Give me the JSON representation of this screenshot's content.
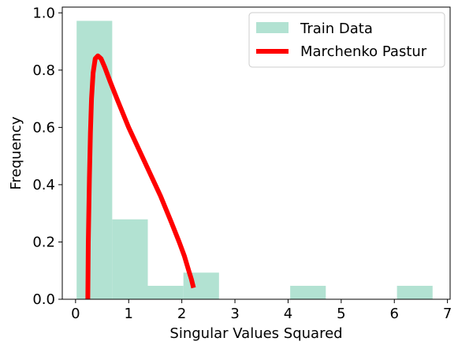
{
  "chart_data": {
    "type": "bar",
    "xlabel": "Singular Values Squared",
    "ylabel": "Frequency",
    "xlim": [
      -0.25,
      7.05
    ],
    "ylim": [
      0.0,
      1.02
    ],
    "xticks": [
      0,
      1,
      2,
      3,
      4,
      5,
      6,
      7
    ],
    "yticks": [
      0.0,
      0.2,
      0.4,
      0.6,
      0.8,
      1.0
    ],
    "xtick_labels": [
      "0",
      "1",
      "2",
      "3",
      "4",
      "5",
      "6",
      "7"
    ],
    "ytick_labels": [
      "0.0",
      "0.2",
      "0.4",
      "0.6",
      "0.8",
      "1.0"
    ],
    "grid": false,
    "legend_position": "top-right",
    "series": [
      {
        "name": "Train Data",
        "kind": "histogram",
        "color": "#b2e2d2",
        "bins": [
          {
            "x0": 0.02,
            "x1": 0.69,
            "value": 0.972
          },
          {
            "x0": 0.69,
            "x1": 1.36,
            "value": 0.279
          },
          {
            "x0": 1.36,
            "x1": 2.03,
            "value": 0.047
          },
          {
            "x0": 2.03,
            "x1": 2.7,
            "value": 0.093
          },
          {
            "x0": 2.7,
            "x1": 3.37,
            "value": 0.0
          },
          {
            "x0": 3.37,
            "x1": 4.04,
            "value": 0.0
          },
          {
            "x0": 4.04,
            "x1": 4.71,
            "value": 0.047
          },
          {
            "x0": 4.71,
            "x1": 5.38,
            "value": 0.0
          },
          {
            "x0": 5.38,
            "x1": 6.05,
            "value": 0.0
          },
          {
            "x0": 6.05,
            "x1": 6.72,
            "value": 0.047
          }
        ]
      },
      {
        "name": "Marchenko Pastur",
        "kind": "line",
        "color": "#ff0000",
        "x": [
          0.23,
          0.24,
          0.26,
          0.28,
          0.3,
          0.33,
          0.37,
          0.42,
          0.48,
          0.55,
          0.65,
          0.8,
          1.0,
          1.2,
          1.4,
          1.6,
          1.8,
          1.95,
          2.05,
          2.13,
          2.18,
          2.22
        ],
        "y": [
          0.0,
          0.2,
          0.42,
          0.58,
          0.7,
          0.79,
          0.84,
          0.85,
          0.84,
          0.81,
          0.76,
          0.69,
          0.6,
          0.52,
          0.44,
          0.36,
          0.27,
          0.2,
          0.15,
          0.1,
          0.07,
          0.04
        ]
      }
    ]
  }
}
